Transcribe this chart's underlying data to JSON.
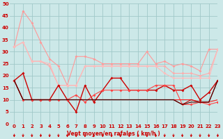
{
  "x": [
    0,
    1,
    2,
    3,
    4,
    5,
    6,
    7,
    8,
    9,
    10,
    11,
    12,
    13,
    14,
    15,
    16,
    17,
    18,
    19,
    20,
    21,
    22,
    23
  ],
  "series": [
    {
      "color": "#ff9999",
      "marker": "D",
      "markersize": 2,
      "linewidth": 0.8,
      "y": [
        32,
        47,
        42,
        34,
        27,
        24,
        16,
        28,
        28,
        27,
        25,
        25,
        25,
        25,
        25,
        30,
        25,
        26,
        24,
        25,
        24,
        22,
        31,
        31
      ]
    },
    {
      "color": "#ffaaaa",
      "marker": "D",
      "markersize": 2,
      "linewidth": 0.8,
      "y": [
        32,
        34,
        26,
        26,
        24,
        16,
        16,
        16,
        24,
        24,
        24,
        24,
        24,
        24,
        24,
        24,
        24,
        24,
        21,
        21,
        21,
        20,
        21,
        31
      ]
    },
    {
      "color": "#ffbbbb",
      "marker": "D",
      "markersize": 2,
      "linewidth": 0.8,
      "y": [
        32,
        34,
        26,
        26,
        25,
        16,
        16,
        16,
        24,
        24,
        24,
        24,
        24,
        24,
        24,
        24,
        24,
        21,
        19,
        19,
        19,
        19,
        19,
        31
      ]
    },
    {
      "color": "#cc0000",
      "marker": "D",
      "markersize": 2,
      "linewidth": 1.0,
      "y": [
        18,
        21,
        10,
        10,
        10,
        16,
        10,
        5,
        16,
        9,
        14,
        19,
        19,
        14,
        14,
        14,
        14,
        16,
        14,
        14,
        16,
        10,
        13,
        18
      ]
    },
    {
      "color": "#ff4444",
      "marker": "D",
      "markersize": 2,
      "linewidth": 0.8,
      "y": [
        18,
        10,
        10,
        10,
        10,
        10,
        10,
        12,
        9,
        12,
        14,
        14,
        14,
        14,
        14,
        14,
        16,
        16,
        16,
        8,
        8,
        9,
        8,
        9
      ]
    },
    {
      "color": "#ff2222",
      "marker": null,
      "markersize": 0,
      "linewidth": 0.8,
      "y": [
        18,
        10,
        10,
        10,
        10,
        10,
        10,
        10,
        10,
        10,
        10,
        10,
        10,
        10,
        10,
        10,
        10,
        10,
        10,
        10,
        10,
        9,
        9,
        10
      ]
    },
    {
      "color": "#cc0000",
      "marker": null,
      "markersize": 0,
      "linewidth": 0.8,
      "y": [
        18,
        10,
        10,
        10,
        10,
        10,
        10,
        10,
        10,
        10,
        10,
        10,
        10,
        10,
        10,
        10,
        10,
        10,
        10,
        8,
        10,
        9,
        9,
        18
      ]
    },
    {
      "color": "#440000",
      "marker": null,
      "markersize": 0,
      "linewidth": 0.8,
      "y": [
        18,
        10,
        10,
        10,
        10,
        10,
        10,
        10,
        10,
        10,
        10,
        10,
        10,
        10,
        10,
        10,
        10,
        10,
        10,
        8,
        9,
        9,
        9,
        18
      ]
    }
  ],
  "ylim": [
    0,
    50
  ],
  "xlim": [
    -0.5,
    23
  ],
  "yticks": [
    0,
    5,
    10,
    15,
    20,
    25,
    30,
    35,
    40,
    45,
    50
  ],
  "xticks": [
    0,
    1,
    2,
    3,
    4,
    5,
    6,
    7,
    8,
    9,
    10,
    11,
    12,
    13,
    14,
    15,
    16,
    17,
    18,
    19,
    20,
    21,
    22,
    23
  ],
  "xlabel": "Vent moyen/en rafales ( km/h )",
  "bg_color": "#cce8e8",
  "grid_color": "#a0c8c8",
  "tick_color": "#cc0000",
  "label_color": "#cc0000"
}
